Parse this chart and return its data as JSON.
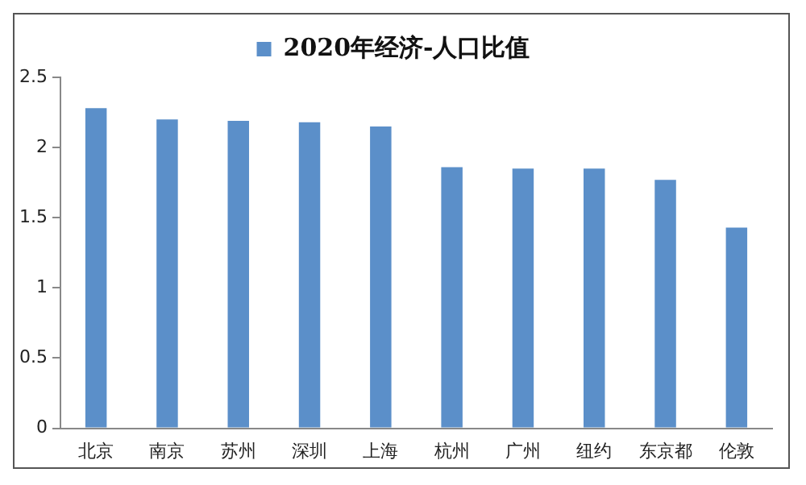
{
  "chart_data": {
    "type": "bar",
    "categories": [
      "北京",
      "南京",
      "苏州",
      "深圳",
      "上海",
      "杭州",
      "广州",
      "纽约",
      "东京都",
      "伦敦"
    ],
    "series": [
      {
        "name": "2020年经济-人口比值",
        "color": "#5b8fc9",
        "values": [
          2.28,
          2.2,
          2.19,
          2.18,
          2.15,
          1.86,
          1.85,
          1.85,
          1.77,
          1.43
        ]
      }
    ],
    "ylim": [
      0,
      2.5
    ],
    "yticks": [
      0,
      0.5,
      1,
      1.5,
      2,
      2.5
    ],
    "grid": false,
    "legend": "top"
  }
}
